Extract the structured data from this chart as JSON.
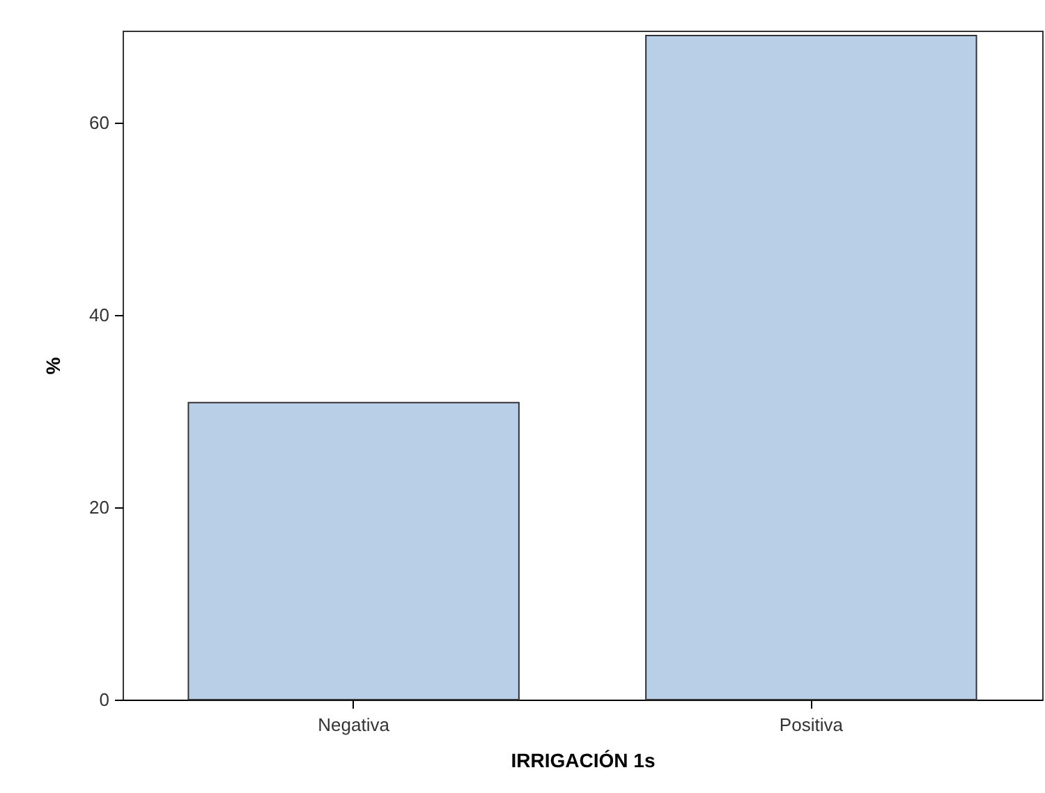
{
  "chart_data": {
    "type": "bar",
    "xlabel": "IRRIGACIÓN 1s",
    "ylabel": "%",
    "categories": [
      "Negativa",
      "Positiva"
    ],
    "values": [
      30.9,
      69.1
    ],
    "color": "#b9cfe7",
    "ylim": [
      0,
      69.6
    ],
    "yticks": [
      0,
      20,
      40,
      60
    ],
    "grid": false,
    "legend": false
  }
}
